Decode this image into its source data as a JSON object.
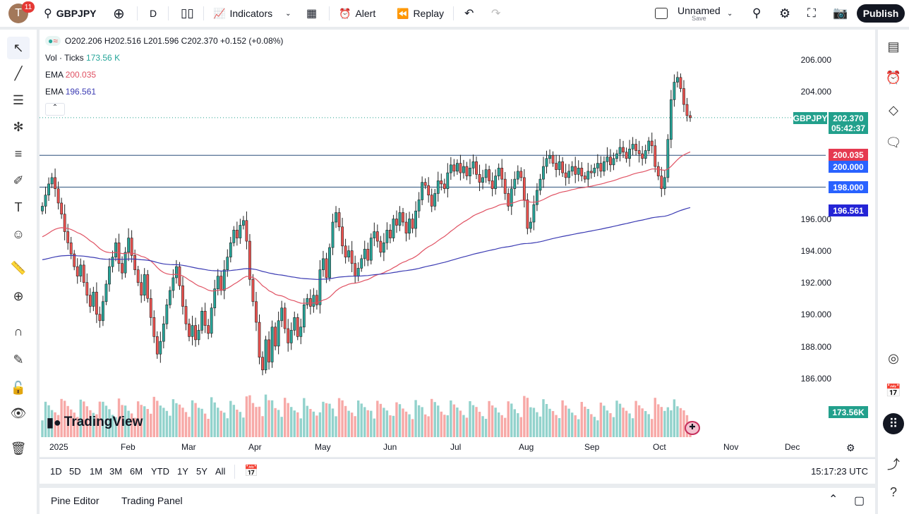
{
  "topbar": {
    "avatar_letter": "T",
    "notifications": "11",
    "symbol": "GBPJPY",
    "interval": "D",
    "indicators": "Indicators",
    "alert": "Alert",
    "replay": "Replay",
    "layout_name": "Unnamed",
    "layout_status": "Save",
    "publish": "Publish"
  },
  "legend": {
    "ohlc": "O202.206 H202.516 L201.596 C202.370 +0.152 (+0.08%)",
    "vol_label": "Vol · Ticks",
    "vol_value": "173.56 K",
    "ema1_label": "EMA",
    "ema1_value": "200.035",
    "ema2_label": "EMA",
    "ema2_value": "196.561"
  },
  "price_axis": {
    "labels": [
      "206.000",
      "204.000",
      "196.000",
      "194.000",
      "192.000",
      "190.000",
      "188.000",
      "186.000"
    ],
    "symbol_tag": "GBPJPY",
    "last_price": "202.370",
    "countdown": "05:42:37",
    "ema1_tag": "200.035",
    "level1_tag": "200.000",
    "level2_tag": "198.000",
    "ema2_tag": "196.561",
    "volume_tag": "173.56K"
  },
  "time_axis": {
    "labels": [
      "2025",
      "Feb",
      "Mar",
      "Apr",
      "May",
      "Jun",
      "Jul",
      "Aug",
      "Sep",
      "Oct",
      "Nov",
      "Dec"
    ]
  },
  "ranges": [
    "1D",
    "5D",
    "1M",
    "3M",
    "6M",
    "YTD",
    "1Y",
    "5Y",
    "All"
  ],
  "clock": "15:17:23 UTC",
  "bottom": {
    "pine": "Pine Editor",
    "trading": "Trading Panel"
  },
  "watermark": "TradingView",
  "colors": {
    "up": "#26a69a",
    "down": "#ef5350",
    "ema1": "#e05263",
    "ema2": "#3b3bb3",
    "level": "#2962ff",
    "hline": "#2a4f7a"
  },
  "chart_data": {
    "type": "candlestick",
    "symbol": "GBPJPY",
    "horizontal_levels": [
      200.0,
      198.0
    ],
    "ylim": [
      185,
      206.5
    ],
    "months": [
      "Jan",
      "Feb",
      "Mar",
      "Apr",
      "May",
      "Jun",
      "Jul",
      "Aug",
      "Sep",
      "Oct"
    ],
    "closes_by_month": [
      [
        196.8,
        197.5,
        198.2,
        198.6,
        197.9,
        197.0,
        196.3,
        195.2,
        194.5,
        193.8,
        193.0,
        192.4,
        193.1,
        192.0,
        191.2,
        190.5,
        191.4,
        190.0,
        189.6,
        190.8,
        191.9,
        193.0
      ],
      [
        193.6,
        194.5,
        193.2,
        192.6,
        193.9,
        194.8,
        193.7,
        192.8,
        192.0,
        191.2,
        192.5,
        191.0,
        189.8,
        188.6,
        187.5,
        188.3,
        189.4,
        190.6,
        191.5,
        192.3
      ],
      [
        193.0,
        191.8,
        190.5,
        189.4,
        188.6,
        189.3,
        188.4,
        189.0,
        190.2,
        189.3,
        188.8,
        190.4,
        191.6,
        192.4,
        191.5,
        192.8,
        193.6,
        194.5,
        195.3,
        194.8,
        195.6
      ],
      [
        195.9,
        194.6,
        192.2,
        190.8,
        189.5,
        187.3,
        186.5,
        188.4,
        187.0,
        189.2,
        188.0,
        189.6,
        190.4,
        189.1,
        188.2,
        189.0,
        189.8,
        188.6,
        189.2,
        190.6,
        191.0,
        190.5
      ],
      [
        191.2,
        190.6,
        192.8,
        193.5,
        192.3,
        194.2,
        195.8,
        196.4,
        195.5,
        194.3,
        193.6,
        194.0,
        193.2,
        192.4,
        192.9,
        193.5,
        194.1,
        193.4,
        194.8,
        195.2,
        194.6,
        193.9
      ],
      [
        194.5,
        195.3,
        194.8,
        196.0,
        195.6,
        196.4,
        195.8,
        195.1,
        196.0,
        195.4,
        196.5,
        197.2,
        198.3,
        198.1,
        197.5,
        196.8,
        197.6,
        198.4,
        198.2,
        197.9,
        198.9
      ],
      [
        199.4,
        199.0,
        199.5,
        198.9,
        199.3,
        198.7,
        199.2,
        199.6,
        198.8,
        198.3,
        198.6,
        199.1,
        198.4,
        197.9,
        198.7,
        199.2,
        198.5,
        197.6,
        196.8,
        197.9,
        198.5,
        199.0,
        198.6
      ],
      [
        197.2,
        195.4,
        195.8,
        196.9,
        197.8,
        198.5,
        199.3,
        199.8,
        200.0,
        199.5,
        199.1,
        199.6,
        198.9,
        198.6,
        199.0,
        199.3,
        198.8,
        199.2,
        198.7,
        198.5,
        199.0
      ],
      [
        198.9,
        199.2,
        199.5,
        199.0,
        199.6,
        199.9,
        199.4,
        199.8,
        200.1,
        200.5,
        200.2,
        199.8,
        200.4,
        200.7,
        200.3,
        200.1,
        199.8,
        200.3,
        200.9,
        200.6,
        199.3,
        198.7
      ],
      [
        197.9,
        198.6,
        201.0,
        203.5,
        204.6,
        204.9,
        204.2,
        203.2,
        202.5,
        202.37
      ]
    ],
    "ema_fast_last": 200.035,
    "ema_slow_last": 196.561
  }
}
